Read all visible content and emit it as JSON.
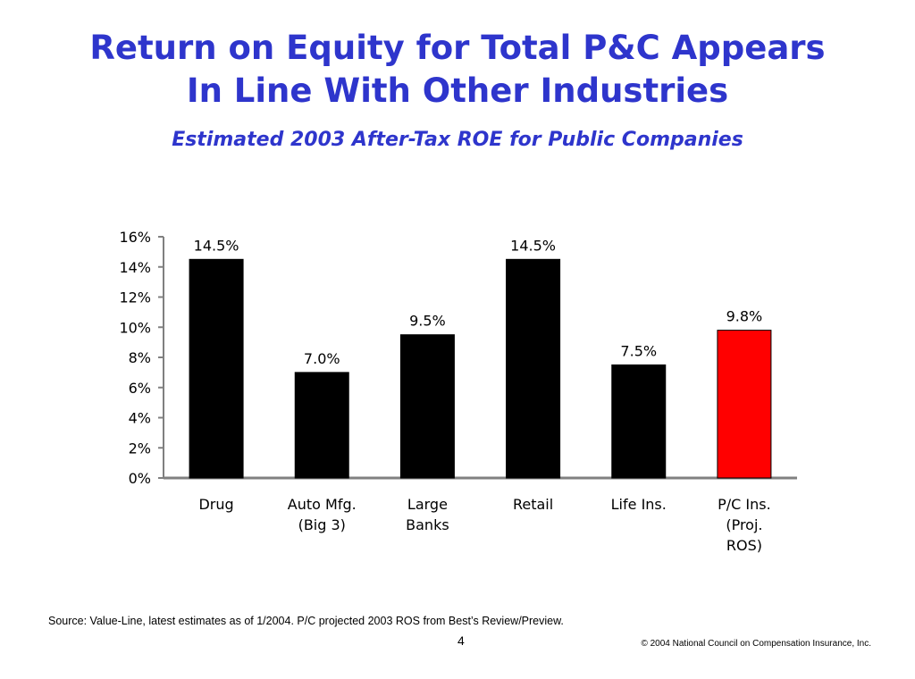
{
  "slide": {
    "title_lines": [
      "Return on Equity for Total P&C Appears",
      "In Line With Other Industries"
    ],
    "subtitle": "Estimated 2003 After-Tax ROE for Public Companies",
    "source": "Source: Value-Line, latest estimates as of 1/2004. P/C projected 2003 ROS from Best’s Review/Preview.",
    "page_number": "4",
    "copyright": "© 2004 National Council on Compensation Insurance, Inc."
  },
  "chart_data": {
    "type": "bar",
    "title": "Estimated 2003 After-Tax ROE for Public Companies",
    "xlabel": "",
    "ylabel": "",
    "categories": [
      [
        "Drug"
      ],
      [
        "Auto Mfg.",
        "(Big 3)"
      ],
      [
        "Large",
        "Banks"
      ],
      [
        "Retail"
      ],
      [
        "Life Ins."
      ],
      [
        "P/C Ins.",
        "(Proj.",
        "ROS)"
      ]
    ],
    "values": [
      14.5,
      7.0,
      9.5,
      14.5,
      7.5,
      9.8
    ],
    "data_labels": [
      "14.5%",
      "7.0%",
      "9.5%",
      "14.5%",
      "7.5%",
      "9.8%"
    ],
    "colors": [
      "#000000",
      "#000000",
      "#000000",
      "#000000",
      "#000000",
      "#ff0000"
    ],
    "ylim": [
      0,
      16
    ],
    "yticks": [
      0,
      2,
      4,
      6,
      8,
      10,
      12,
      14,
      16
    ],
    "ytick_labels": [
      "0%",
      "2%",
      "4%",
      "6%",
      "8%",
      "10%",
      "12%",
      "14%",
      "16%"
    ],
    "grid": false,
    "legend": "none"
  }
}
